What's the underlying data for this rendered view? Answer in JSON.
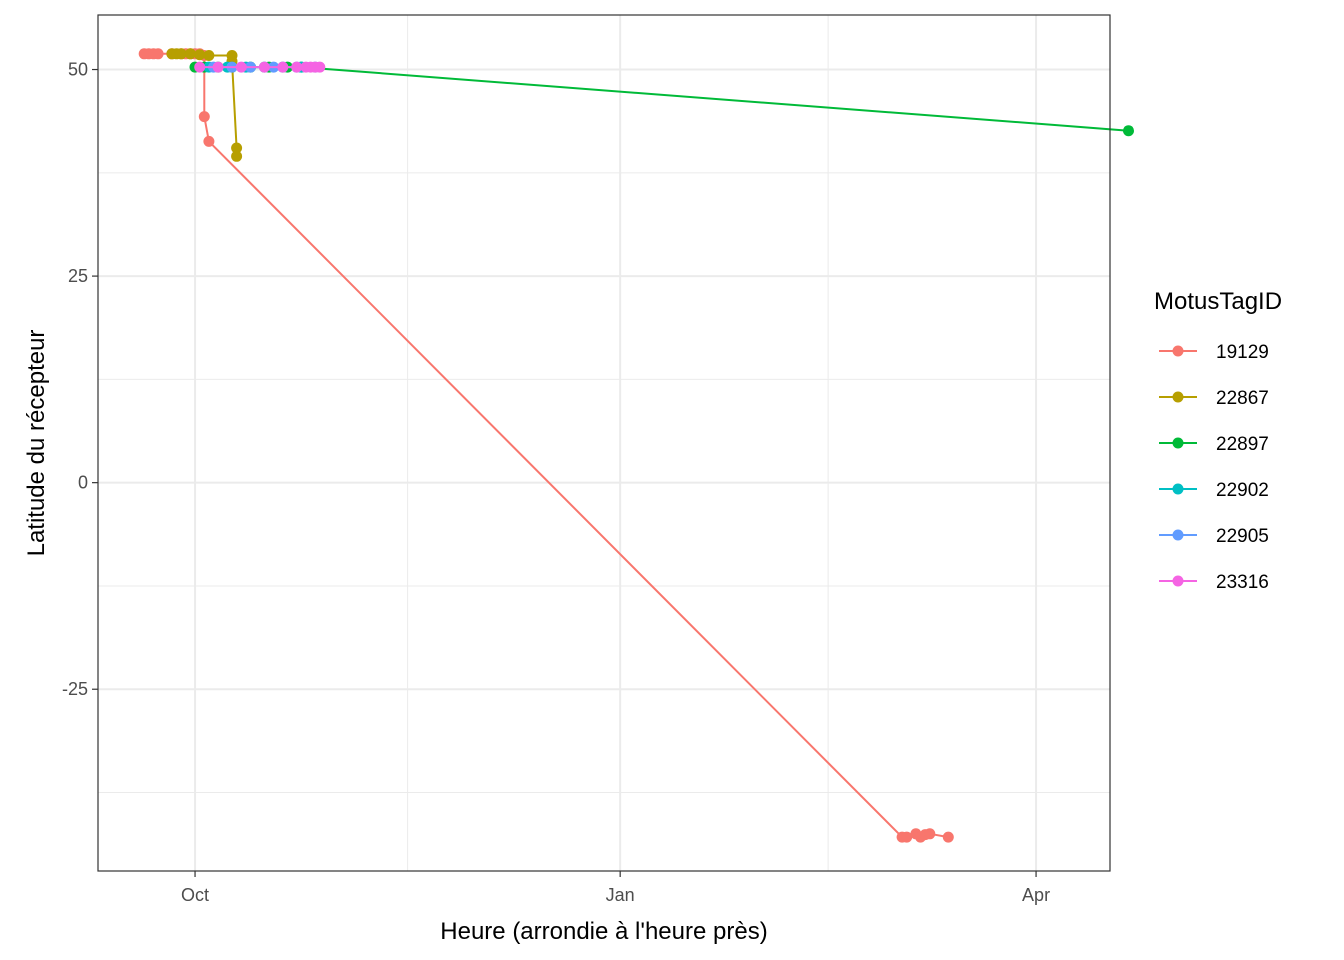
{
  "chart_data": {
    "type": "line",
    "title": "",
    "xlabel": "Heure (arrondie à l'heure près)",
    "ylabel": "Latitude du récepteur",
    "x_type": "date",
    "xlim": [
      "2018-09-10",
      "2019-04-17"
    ],
    "ylim": [
      -47,
      56.6
    ],
    "x_ticks": [
      {
        "date": "2018-10-01",
        "label": "Oct"
      },
      {
        "date": "2019-01-01",
        "label": "Jan"
      },
      {
        "date": "2019-04-01",
        "label": "Apr"
      }
    ],
    "y_ticks": [
      {
        "value": 50,
        "label": "50"
      },
      {
        "value": 25,
        "label": "25"
      },
      {
        "value": 0,
        "label": "0"
      },
      {
        "value": -25,
        "label": "-25"
      }
    ],
    "grid": true,
    "legend": {
      "title": "MotusTagID",
      "position": "right"
    },
    "series": [
      {
        "name": "19129",
        "color": "#F8766D",
        "points": [
          [
            "2018-09-20",
            51.9
          ],
          [
            "2018-09-21",
            51.9
          ],
          [
            "2018-09-22",
            51.9
          ],
          [
            "2018-09-23",
            51.9
          ],
          [
            "2018-09-26",
            51.9
          ],
          [
            "2018-09-28",
            51.9
          ],
          [
            "2018-09-29",
            51.9
          ],
          [
            "2018-09-30",
            51.9
          ],
          [
            "2018-10-01",
            51.9
          ],
          [
            "2018-10-02",
            51.9
          ],
          [
            "2018-10-03",
            51.7
          ],
          [
            "2018-10-03",
            44.3
          ],
          [
            "2018-10-04",
            41.3
          ],
          [
            "2019-03-03",
            -42.9
          ],
          [
            "2019-03-04",
            -42.9
          ],
          [
            "2019-03-06",
            -42.5
          ],
          [
            "2019-03-07",
            -42.9
          ],
          [
            "2019-03-08",
            -42.6
          ],
          [
            "2019-03-09",
            -42.5
          ],
          [
            "2019-03-13",
            -42.9
          ]
        ]
      },
      {
        "name": "22867",
        "color": "#B79F00",
        "points": [
          [
            "2018-09-26",
            51.9
          ],
          [
            "2018-09-27",
            51.9
          ],
          [
            "2018-09-28",
            51.9
          ],
          [
            "2018-09-30",
            51.9
          ],
          [
            "2018-10-02",
            51.8
          ],
          [
            "2018-10-04",
            51.7
          ],
          [
            "2018-10-09",
            51.7
          ],
          [
            "2018-10-09",
            51.0
          ],
          [
            "2018-10-10",
            40.5
          ],
          [
            "2018-10-10",
            39.5
          ]
        ]
      },
      {
        "name": "22897",
        "color": "#00BA38",
        "points": [
          [
            "2018-10-01",
            50.3
          ],
          [
            "2018-10-03",
            50.3
          ],
          [
            "2018-10-06",
            50.3
          ],
          [
            "2018-10-09",
            50.3
          ],
          [
            "2018-10-13",
            50.3
          ],
          [
            "2018-10-17",
            50.3
          ],
          [
            "2018-10-21",
            50.3
          ],
          [
            "2018-10-24",
            50.3
          ],
          [
            "2019-04-21",
            42.6
          ]
        ]
      },
      {
        "name": "22902",
        "color": "#00BFC4",
        "points": [
          [
            "2018-10-04",
            50.3
          ],
          [
            "2018-10-08",
            50.3
          ],
          [
            "2018-10-12",
            50.3
          ],
          [
            "2018-10-16",
            50.3
          ],
          [
            "2018-10-20",
            50.3
          ],
          [
            "2018-10-24",
            50.3
          ]
        ]
      },
      {
        "name": "22905",
        "color": "#619CFF",
        "points": [
          [
            "2018-10-05",
            50.3
          ],
          [
            "2018-10-09",
            50.3
          ],
          [
            "2018-10-13",
            50.3
          ],
          [
            "2018-10-18",
            50.3
          ],
          [
            "2018-10-23",
            50.3
          ],
          [
            "2018-10-27",
            50.3
          ]
        ]
      },
      {
        "name": "23316",
        "color": "#F564E3",
        "points": [
          [
            "2018-10-02",
            50.3
          ],
          [
            "2018-10-06",
            50.3
          ],
          [
            "2018-10-11",
            50.3
          ],
          [
            "2018-10-16",
            50.3
          ],
          [
            "2018-10-20",
            50.3
          ],
          [
            "2018-10-23",
            50.3
          ],
          [
            "2018-10-25",
            50.3
          ],
          [
            "2018-10-26",
            50.3
          ],
          [
            "2018-10-27",
            50.3
          ],
          [
            "2018-10-28",
            50.3
          ]
        ]
      }
    ]
  }
}
